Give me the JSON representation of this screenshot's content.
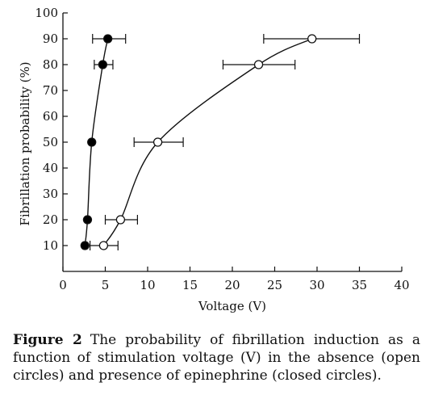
{
  "chart_data": {
    "type": "scatter",
    "xlabel": "Voltage (V)",
    "ylabel": "Fibrillation probability (%)",
    "xlim": [
      0,
      40
    ],
    "ylim": [
      0,
      100
    ],
    "x_ticks": [
      0,
      5,
      10,
      15,
      20,
      25,
      30,
      35,
      40
    ],
    "y_ticks": [
      10,
      20,
      30,
      40,
      50,
      60,
      70,
      80,
      90,
      100
    ],
    "grid": false,
    "legend": "none",
    "series": [
      {
        "marker": "open-circle",
        "connected": true,
        "points": [
          {
            "x": 4.8,
            "y": 10,
            "xerr_low": 3.2,
            "xerr_high": 6.5
          },
          {
            "x": 6.8,
            "y": 20,
            "xerr_low": 5.0,
            "xerr_high": 8.8
          },
          {
            "x": 11.2,
            "y": 50,
            "xerr_low": 8.4,
            "xerr_high": 14.2
          },
          {
            "x": 23.1,
            "y": 80,
            "xerr_low": 18.9,
            "xerr_high": 27.4
          },
          {
            "x": 29.4,
            "y": 90,
            "xerr_low": 23.7,
            "xerr_high": 35.0
          }
        ]
      },
      {
        "marker": "closed-circle",
        "connected": true,
        "points": [
          {
            "x": 2.6,
            "y": 10
          },
          {
            "x": 2.9,
            "y": 20
          },
          {
            "x": 3.4,
            "y": 50
          },
          {
            "x": 4.7,
            "y": 80,
            "xerr_low": 3.7,
            "xerr_high": 5.9
          },
          {
            "x": 5.3,
            "y": 90,
            "xerr_low": 3.5,
            "xerr_high": 7.4
          }
        ]
      }
    ],
    "colors": {
      "ink": "#111111",
      "open_fill": "#ffffff",
      "closed_fill": "#000000"
    }
  },
  "caption": {
    "label": "Figure 2",
    "text": "The probability of fibrillation induction as a function of stimulation voltage (V) in the absence (open circles) and presence of epinephrine (closed circles)."
  }
}
